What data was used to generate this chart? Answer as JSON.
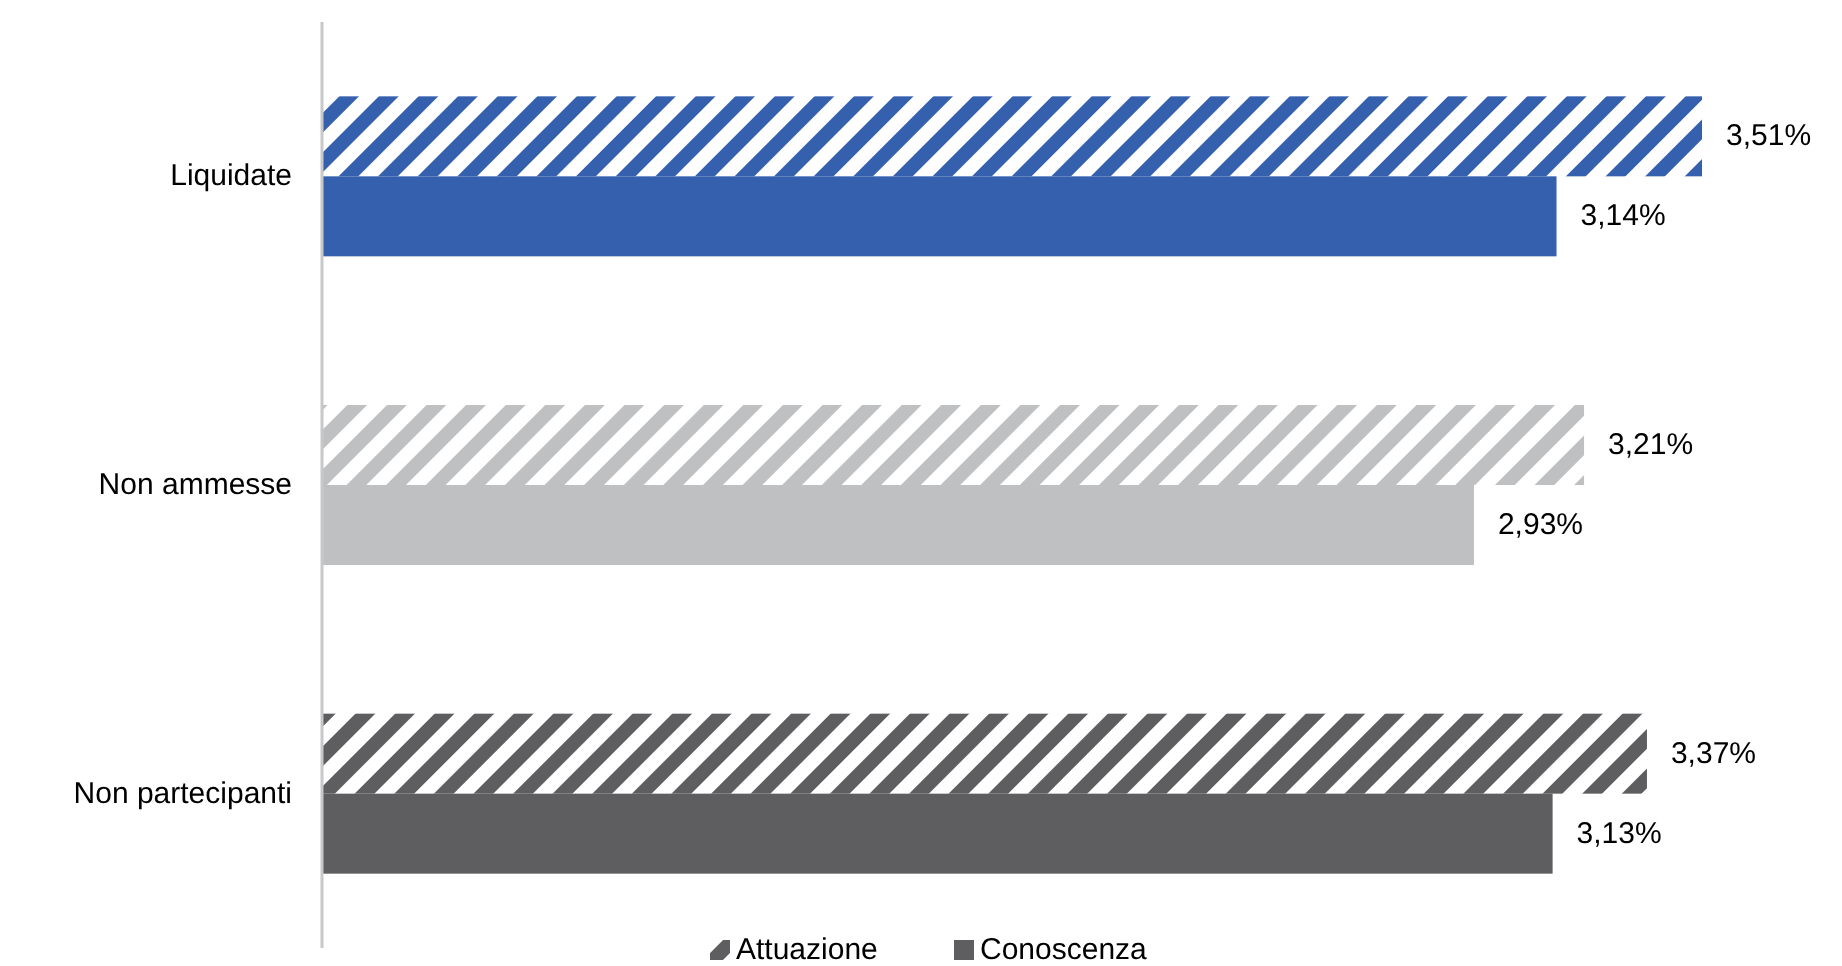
{
  "chart_data": {
    "type": "bar",
    "orientation": "horizontal",
    "categories": [
      "Liquidate",
      "Non ammesse",
      "Non partecipanti"
    ],
    "series": [
      {
        "name": "Attuazione",
        "color": "#5e5e60",
        "colors": [
          "#3560ae",
          "#bfc0c2",
          "#5e5e60"
        ],
        "values": [
          3.51,
          3.21,
          3.37
        ],
        "value_labels": [
          "3,51%",
          "3,21%",
          "3,37%"
        ]
      },
      {
        "name": "Conoscenza",
        "color": "#5e5e60",
        "colors": [
          "#3560ae",
          "#bfc0c2",
          "#5e5e60"
        ],
        "values": [
          3.14,
          2.93,
          3.13
        ],
        "value_labels": [
          "3,14%",
          "2,93%",
          "3,13%"
        ]
      }
    ],
    "legend": "bottom"
  }
}
